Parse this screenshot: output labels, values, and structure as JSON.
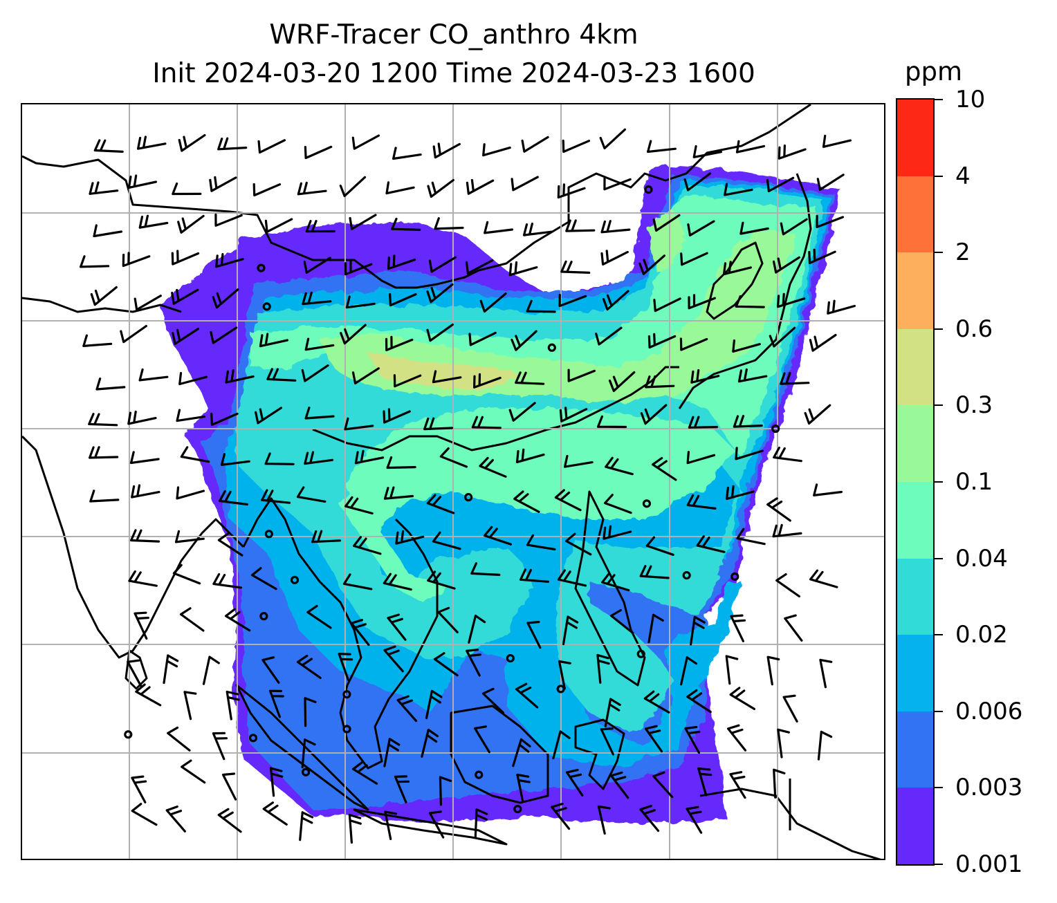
{
  "title": {
    "line1": "WRF-Tracer CO_anthro 4km",
    "line2": "Init 2024-03-20 1200 Time 2024-03-23 1600"
  },
  "colorbar": {
    "unit": "ppm",
    "levels": [
      "0.001",
      "0.003",
      "0.006",
      "0.02",
      "0.04",
      "0.1",
      "0.3",
      "0.6",
      "2",
      "4",
      "10"
    ],
    "colors": [
      "#6529fb",
      "#3273f3",
      "#06b2ec",
      "#31dbd7",
      "#6dfcbb",
      "#99f999",
      "#d1e184",
      "#fdaf5d",
      "#fe7138",
      "#fd2916"
    ]
  },
  "map": {
    "colormap_name": "rainbow",
    "gridlines": true,
    "coastlines": true,
    "wind_barbs": true
  }
}
